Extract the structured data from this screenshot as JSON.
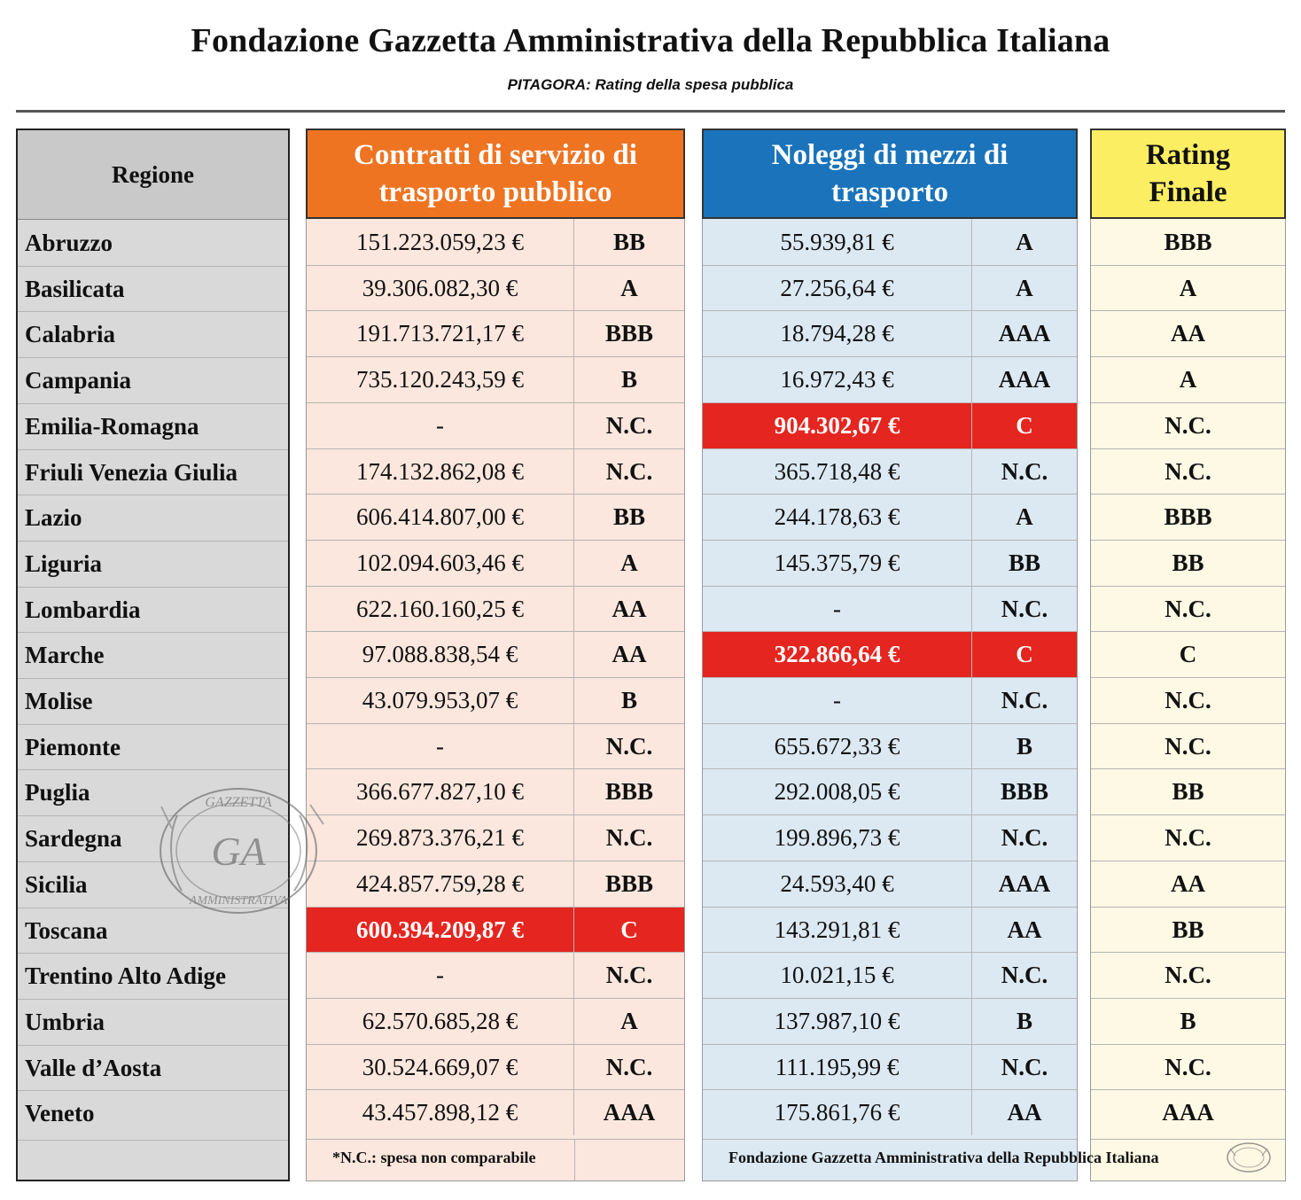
{
  "header": {
    "title": "Fondazione Gazzetta Amministrativa della Repubblica Italiana",
    "subtitle": "PITAGORA: Rating della spesa pubblica"
  },
  "columns": {
    "regione": "Regione",
    "contratti": "Contratti di servizio di trasporto pubblico",
    "noleggi": "Noleggi di mezzi di trasporto",
    "rating_finale_line1": "Rating",
    "rating_finale_line2": "Finale"
  },
  "colors": {
    "contratti_header": "#ef7422",
    "noleggi_header": "#1a73bb",
    "rating_header": "#fbee62",
    "highlight_red": "#e5251f"
  },
  "rows": [
    {
      "regione": "Abruzzo",
      "contratti": "151.223.059,23 €",
      "contratti_rating": "BB",
      "noleggi": "55.939,81 €",
      "noleggi_rating": "A",
      "finale": "BBB",
      "contratti_red": false,
      "noleggi_red": false
    },
    {
      "regione": "Basilicata",
      "contratti": "39.306.082,30 €",
      "contratti_rating": "A",
      "noleggi": "27.256,64 €",
      "noleggi_rating": "A",
      "finale": "A",
      "contratti_red": false,
      "noleggi_red": false
    },
    {
      "regione": "Calabria",
      "contratti": "191.713.721,17 €",
      "contratti_rating": "BBB",
      "noleggi": "18.794,28 €",
      "noleggi_rating": "AAA",
      "finale": "AA",
      "contratti_red": false,
      "noleggi_red": false
    },
    {
      "regione": "Campania",
      "contratti": "735.120.243,59 €",
      "contratti_rating": "B",
      "noleggi": "16.972,43 €",
      "noleggi_rating": "AAA",
      "finale": "A",
      "contratti_red": false,
      "noleggi_red": false
    },
    {
      "regione": "Emilia-Romagna",
      "contratti": "-",
      "contratti_rating": "N.C.",
      "noleggi": "904.302,67 €",
      "noleggi_rating": "C",
      "finale": "N.C.",
      "contratti_red": false,
      "noleggi_red": true
    },
    {
      "regione": "Friuli Venezia Giulia",
      "contratti": "174.132.862,08 €",
      "contratti_rating": "N.C.",
      "noleggi": "365.718,48 €",
      "noleggi_rating": "N.C.",
      "finale": "N.C.",
      "contratti_red": false,
      "noleggi_red": false
    },
    {
      "regione": "Lazio",
      "contratti": "606.414.807,00 €",
      "contratti_rating": "BB",
      "noleggi": "244.178,63 €",
      "noleggi_rating": "A",
      "finale": "BBB",
      "contratti_red": false,
      "noleggi_red": false
    },
    {
      "regione": "Liguria",
      "contratti": "102.094.603,46 €",
      "contratti_rating": "A",
      "noleggi": "145.375,79 €",
      "noleggi_rating": "BB",
      "finale": "BB",
      "contratti_red": false,
      "noleggi_red": false
    },
    {
      "regione": "Lombardia",
      "contratti": "622.160.160,25 €",
      "contratti_rating": "AA",
      "noleggi": "-",
      "noleggi_rating": "N.C.",
      "finale": "N.C.",
      "contratti_red": false,
      "noleggi_red": false
    },
    {
      "regione": "Marche",
      "contratti": "97.088.838,54 €",
      "contratti_rating": "AA",
      "noleggi": "322.866,64 €",
      "noleggi_rating": "C",
      "finale": "C",
      "contratti_red": false,
      "noleggi_red": true
    },
    {
      "regione": "Molise",
      "contratti": "43.079.953,07 €",
      "contratti_rating": "B",
      "noleggi": "-",
      "noleggi_rating": "N.C.",
      "finale": "N.C.",
      "contratti_red": false,
      "noleggi_red": false
    },
    {
      "regione": "Piemonte",
      "contratti": "-",
      "contratti_rating": "N.C.",
      "noleggi": "655.672,33 €",
      "noleggi_rating": "B",
      "finale": "N.C.",
      "contratti_red": false,
      "noleggi_red": false
    },
    {
      "regione": "Puglia",
      "contratti": "366.677.827,10 €",
      "contratti_rating": "BBB",
      "noleggi": "292.008,05 €",
      "noleggi_rating": "BBB",
      "finale": "BB",
      "contratti_red": false,
      "noleggi_red": false
    },
    {
      "regione": "Sardegna",
      "contratti": "269.873.376,21 €",
      "contratti_rating": "N.C.",
      "noleggi": "199.896,73 €",
      "noleggi_rating": "N.C.",
      "finale": "N.C.",
      "contratti_red": false,
      "noleggi_red": false
    },
    {
      "regione": "Sicilia",
      "contratti": "424.857.759,28 €",
      "contratti_rating": "BBB",
      "noleggi": "24.593,40 €",
      "noleggi_rating": "AAA",
      "finale": "AA",
      "contratti_red": false,
      "noleggi_red": false
    },
    {
      "regione": "Toscana",
      "contratti": "600.394.209,87 €",
      "contratti_rating": "C",
      "noleggi": "143.291,81 €",
      "noleggi_rating": "AA",
      "finale": "BB",
      "contratti_red": true,
      "noleggi_red": false
    },
    {
      "regione": "Trentino Alto Adige",
      "contratti": "-",
      "contratti_rating": "N.C.",
      "noleggi": "10.021,15 €",
      "noleggi_rating": "N.C.",
      "finale": "N.C.",
      "contratti_red": false,
      "noleggi_red": false
    },
    {
      "regione": "Umbria",
      "contratti": "62.570.685,28 €",
      "contratti_rating": "A",
      "noleggi": "137.987,10 €",
      "noleggi_rating": "B",
      "finale": "B",
      "contratti_red": false,
      "noleggi_red": false
    },
    {
      "regione": "Valle d’Aosta",
      "contratti": "30.524.669,07 €",
      "contratti_rating": "N.C.",
      "noleggi": "111.195,99 €",
      "noleggi_rating": "N.C.",
      "finale": "N.C.",
      "contratti_red": false,
      "noleggi_red": false
    },
    {
      "regione": "Veneto",
      "contratti": "43.457.898,12 €",
      "contratti_rating": "AAA",
      "noleggi": "175.861,76 €",
      "noleggi_rating": "AA",
      "finale": "AAA",
      "contratti_red": false,
      "noleggi_red": false
    }
  ],
  "footer": {
    "note": "*N.C.: spesa non comparabile",
    "credit": "Fondazione Gazzetta Amministrativa della Repubblica Italiana"
  },
  "watermark": {
    "logo_text": "GA",
    "ring_top": "GAZZETTA",
    "ring_bottom": "AMMINISTRATIVA"
  }
}
